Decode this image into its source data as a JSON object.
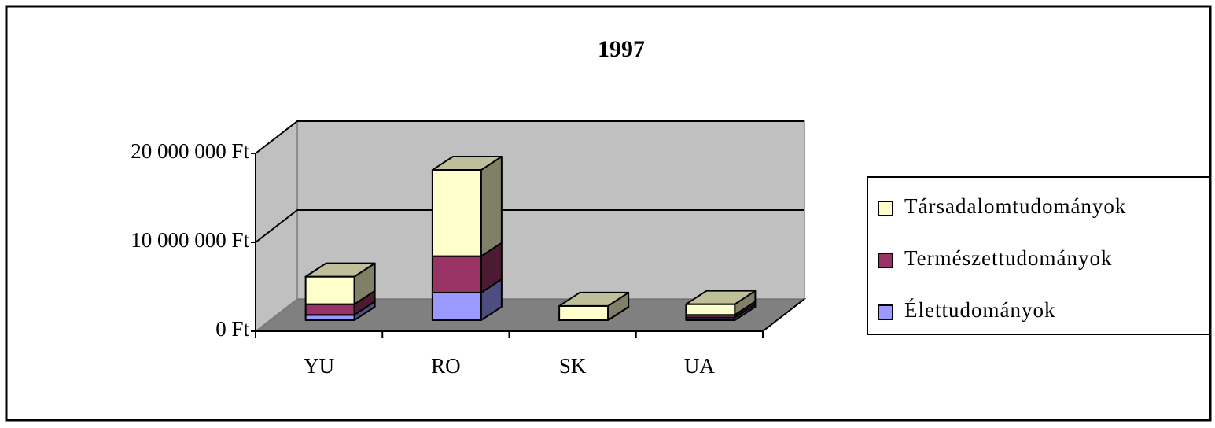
{
  "chart_data": {
    "type": "bar3d_stacked",
    "title": "1997",
    "categories": [
      "YU",
      "RO",
      "SK",
      "UA"
    ],
    "series": [
      {
        "name": "Élettudományok",
        "color": "#9999ff",
        "values": [
          600000,
          3100000,
          0,
          300000
        ]
      },
      {
        "name": "Természettudományok",
        "color": "#993366",
        "values": [
          1200000,
          4100000,
          0,
          300000
        ]
      },
      {
        "name": "Társadalomtudományok",
        "color": "#ffffcc",
        "values": [
          3100000,
          9700000,
          1600000,
          1200000
        ]
      }
    ],
    "ylim": [
      0,
      20000000
    ],
    "yticks": [
      {
        "value": 0,
        "label": "0 Ft"
      },
      {
        "value": 10000000,
        "label": "10 000 000 Ft"
      },
      {
        "value": 20000000,
        "label": "20 000 000 Ft"
      }
    ],
    "grid": true,
    "legend": "right"
  }
}
